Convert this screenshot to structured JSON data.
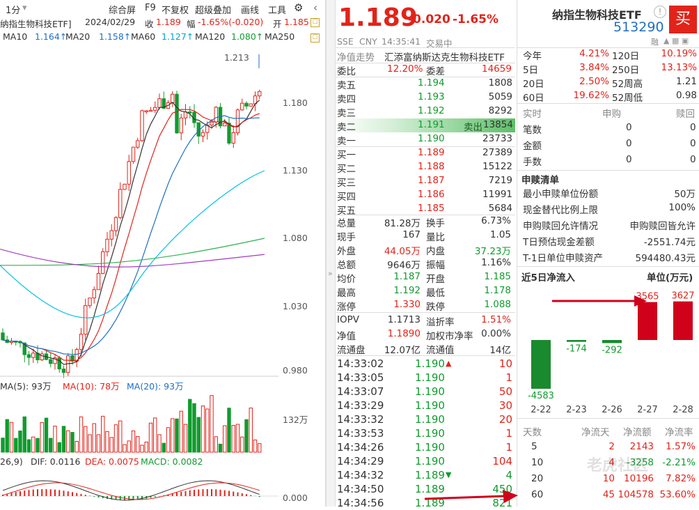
{
  "colors": {
    "up": "#e2231a",
    "down": "#119b2e",
    "ma10": "#333333",
    "ma20": "#e2231a",
    "ma60": "#1f6fc5",
    "ma120": "#00b6d6",
    "ma250": "#8e44ad"
  },
  "toolbar": {
    "period": "1分",
    "items": [
      "综合屏",
      "F9",
      "不复权",
      "超级叠加",
      "画线",
      "工具"
    ],
    "icons": [
      "gear-icon",
      "chevron-left-icon"
    ]
  },
  "infobar": {
    "name": "纳指生物科技ETF]",
    "date": "2024/02/29",
    "close_label": "收",
    "close": "1.189",
    "chg_label": "幅",
    "chg": "-1.65%(-0.020)",
    "open_label": "开",
    "open": "1.185"
  },
  "mabar": {
    "ma10": "MA10",
    "ma10_v": "1.164↑",
    "ma20": "MA20",
    "ma20_v": "1.158↑",
    "ma60": "MA60",
    "ma60_v": "1.127↑",
    "ma120": "MA120",
    "ma120_v": "1.080↑",
    "ma250": "MA250"
  },
  "kline": {
    "yticks": [
      "1.180",
      "1.130",
      "1.080",
      "1.030",
      "0.980"
    ],
    "high_label": "1.213"
  },
  "volbar": {
    "ma5": "MA(5): 93万",
    "ma10": "MA(10): 78万",
    "ma20": "MA(20): 93万",
    "ytick": "132万"
  },
  "macdbar": {
    "params": "26,9)",
    "dif": "DIF: 0.0116",
    "dea": "DEA: 0.0075",
    "macd": "MACD: 0.0082",
    "ytick": "0.000"
  },
  "quote": {
    "price": "1.189",
    "chg": "-0.020",
    "pct": "-1.65%",
    "name": "纳指生物科技ETF",
    "code": "513290",
    "buy": "买",
    "market": "SSE",
    "currency": "CNY",
    "time": "14:35:41",
    "status": "交易中",
    "net_label": "净值走势",
    "fund_name": "汇添富纳斯达克生物科技ETF",
    "margin_icon": "融"
  },
  "book": {
    "weibi_label": "委比",
    "weibi": "12.20%",
    "weicha_label": "委差",
    "weicha": "14659",
    "asks": [
      {
        "label": "卖五",
        "price": "1.194",
        "vol": "1808"
      },
      {
        "label": "卖四",
        "price": "1.193",
        "vol": "5059"
      },
      {
        "label": "卖三",
        "price": "1.192",
        "vol": "8292"
      },
      {
        "label": "卖二",
        "price": "1.191",
        "vol": "13854",
        "note": "卖出"
      },
      {
        "label": "卖一",
        "price": "1.190",
        "vol": "23733"
      }
    ],
    "bids": [
      {
        "label": "买一",
        "price": "1.189",
        "vol": "27389"
      },
      {
        "label": "买二",
        "price": "1.188",
        "vol": "15122"
      },
      {
        "label": "买三",
        "price": "1.187",
        "vol": "7219"
      },
      {
        "label": "买四",
        "price": "1.186",
        "vol": "11991"
      },
      {
        "label": "买五",
        "price": "1.185",
        "vol": "5684"
      }
    ]
  },
  "stats": [
    {
      "l1": "总量",
      "v1": "81.28万",
      "l2": "换手",
      "v2": "6.73%"
    },
    {
      "l1": "现手",
      "v1": "167",
      "l2": "量比",
      "v2": "1.05"
    },
    {
      "l1": "外盘",
      "v1": "44.05万",
      "l2": "内盘",
      "v2": "37.23万"
    },
    {
      "l1": "总额",
      "v1": "9646万",
      "l2": "振幅",
      "v2": "1.16%"
    },
    {
      "l1": "均价",
      "v1": "1.187",
      "l2": "开盘",
      "v2": "1.185"
    },
    {
      "l1": "最高",
      "v1": "1.192",
      "l2": "最低",
      "v2": "1.178"
    },
    {
      "l1": "涨停",
      "v1": "1.330",
      "l2": "跌停",
      "v2": "1.088"
    }
  ],
  "iopv": [
    {
      "l1": "IOPV",
      "v1": "1.1713",
      "l2": "溢折率",
      "v2": "1.51%"
    },
    {
      "l1": "净值",
      "v1": "1.1890",
      "l2": "加权市净率",
      "v2": "0.00%"
    },
    {
      "l1": "流通盘",
      "v1": "12.07亿",
      "l2": "流通值",
      "v2": "14亿"
    }
  ],
  "ticks": [
    {
      "t": "14:33:02",
      "p": "1.190",
      "v": "10",
      "dir": "up"
    },
    {
      "t": "14:33:05",
      "p": "1.190",
      "v": "1",
      "dir": ""
    },
    {
      "t": "14:33:07",
      "p": "1.190",
      "v": "50",
      "dir": ""
    },
    {
      "t": "14:33:29",
      "p": "1.190",
      "v": "30",
      "dir": ""
    },
    {
      "t": "14:33:32",
      "p": "1.190",
      "v": "20",
      "dir": ""
    },
    {
      "t": "14:33:53",
      "p": "1.190",
      "v": "1",
      "dir": ""
    },
    {
      "t": "14:34:26",
      "p": "1.190",
      "v": "1",
      "dir": ""
    },
    {
      "t": "14:34:29",
      "p": "1.190",
      "v": "104",
      "dir": ""
    },
    {
      "t": "14:34:32",
      "p": "1.189",
      "v": "4",
      "dir": "down"
    },
    {
      "t": "14:34:50",
      "p": "1.189",
      "v": "450",
      "dir": ""
    },
    {
      "t": "14:34:56",
      "p": "1.189",
      "v": "821",
      "dir": ""
    }
  ],
  "perf": [
    {
      "l1": "今年",
      "v1": "4.21%",
      "l2": "120日",
      "v2": "10.19%"
    },
    {
      "l1": "5日",
      "v1": "3.84%",
      "l2": "250日",
      "v2": "13.13%"
    },
    {
      "l1": "20日",
      "v1": "2.50%",
      "l2": "52周高",
      "v2": "1.21"
    },
    {
      "l1": "60日",
      "v1": "19.62%",
      "l2": "52周低",
      "v2": "0.98"
    }
  ],
  "realtime": {
    "header": [
      "实时",
      "申购",
      "赎回"
    ],
    "rows": [
      {
        "l": "笔数",
        "a": "0",
        "b": "0"
      },
      {
        "l": "金额",
        "a": "0",
        "b": "0"
      },
      {
        "l": "手数",
        "a": "0",
        "b": "0"
      }
    ]
  },
  "redeem": {
    "title": "申赎清单",
    "rows": [
      {
        "l": "最小申赎单位份额",
        "v": "50万"
      },
      {
        "l": "现金替代比例上限",
        "v": "100%"
      },
      {
        "l": "申购赎回允许情况",
        "v": "申购赎回皆允许"
      },
      {
        "l": "T日预估现金差额",
        "v": "-2551.74元"
      },
      {
        "l": "T-1日单位申赎资产",
        "v": "594480.43元"
      }
    ]
  },
  "flow_title": "近5日净流入",
  "flow_unit": "单位(万元)",
  "chart_data": {
    "type": "bar",
    "title": "近5日净流入",
    "ylabel": "单位(万元)",
    "categories": [
      "2-22",
      "2-23",
      "2-26",
      "2-27",
      "2-28"
    ],
    "values": [
      -4583,
      -174,
      -292,
      3565,
      3627
    ]
  },
  "flowtable": {
    "header": [
      "天数",
      "净流天",
      "净流额",
      "净流率"
    ],
    "rows": [
      {
        "d": "5",
        "n": "2",
        "a": "2143",
        "r": "1.57%"
      },
      {
        "d": "10",
        "n": "4",
        "a": "-3258",
        "r": "-2.21%"
      },
      {
        "d": "20",
        "n": "10",
        "a": "10196",
        "r": "7.82%"
      },
      {
        "d": "60",
        "n": "45",
        "a": "104578",
        "r": "53.60%"
      }
    ]
  },
  "watermark": "老虎社区"
}
